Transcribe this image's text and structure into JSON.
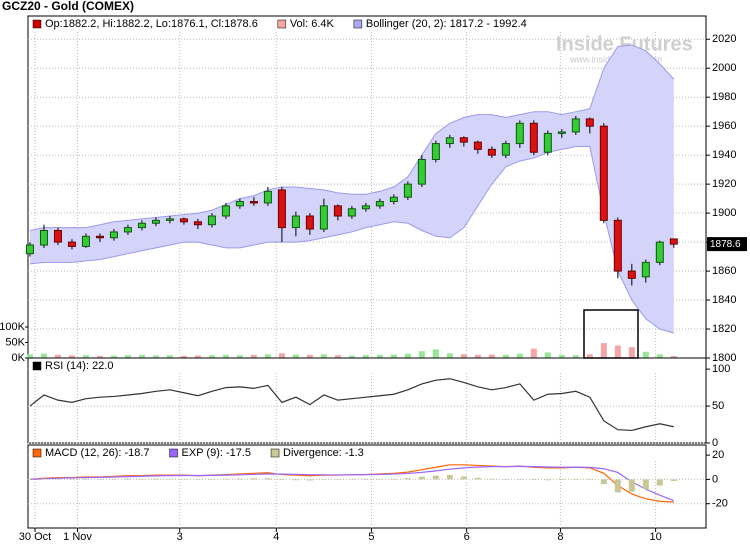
{
  "chart_data": [
    {
      "type": "candlestick",
      "title": "GCZ20 - Gold (COMEX)",
      "legend": [
        {
          "text": "Op:1882.2, Hi:1882.2, Lo:1876.1, Cl:1878.6",
          "color": "#cc0000"
        },
        {
          "text": "Vol: 6.4K",
          "color": "#f4a6a6"
        },
        {
          "text": "Bollinger (20, 2): 1817.2 - 1992.4",
          "color": "#aaaaee"
        }
      ],
      "watermark": [
        "Inside Futures",
        "www.insidefutures.com"
      ],
      "x": [
        0,
        1,
        2,
        3,
        4,
        5,
        6,
        7,
        8,
        9,
        10,
        11,
        12,
        13,
        14,
        15,
        16,
        17,
        18,
        19,
        20,
        21,
        22,
        23,
        24,
        25,
        26,
        27,
        28,
        29,
        30,
        31,
        32,
        33,
        34,
        35,
        36,
        37,
        38,
        39,
        40,
        41,
        42,
        43,
        44,
        45,
        46
      ],
      "open": [
        1872,
        1878,
        1888,
        1880,
        1877,
        1884,
        1883,
        1887,
        1890,
        1893,
        1895,
        1896,
        1894,
        1892,
        1898,
        1905,
        1908,
        1907,
        1916,
        1890,
        1898,
        1889,
        1905,
        1898,
        1903,
        1905,
        1908,
        1911,
        1920,
        1937,
        1948,
        1952,
        1949,
        1944,
        1940,
        1948,
        1962,
        1942,
        1955,
        1956,
        1965,
        1960,
        1895,
        1860,
        1856,
        1866,
        1882.2
      ],
      "high": [
        1880,
        1892,
        1890,
        1882,
        1886,
        1886,
        1889,
        1892,
        1895,
        1897,
        1898,
        1897,
        1896,
        1900,
        1907,
        1910,
        1911,
        1918,
        1918,
        1901,
        1900,
        1910,
        1906,
        1905,
        1907,
        1910,
        1913,
        1922,
        1940,
        1950,
        1954,
        1953,
        1950,
        1946,
        1950,
        1964,
        1964,
        1957,
        1958,
        1967,
        1966,
        1962,
        1897,
        1865,
        1868,
        1881,
        1882.2
      ],
      "low": [
        1870,
        1876,
        1878,
        1875,
        1876,
        1880,
        1881,
        1885,
        1888,
        1891,
        1893,
        1892,
        1889,
        1890,
        1896,
        1903,
        1905,
        1905,
        1880,
        1884,
        1885,
        1887,
        1895,
        1896,
        1901,
        1903,
        1906,
        1909,
        1918,
        1935,
        1945,
        1946,
        1941,
        1938,
        1938,
        1945,
        1940,
        1940,
        1952,
        1954,
        1955,
        1893,
        1855,
        1850,
        1852,
        1864,
        1876.1
      ],
      "close": [
        1878,
        1888,
        1880,
        1877,
        1884,
        1883,
        1887,
        1890,
        1893,
        1895,
        1896,
        1894,
        1892,
        1898,
        1905,
        1908,
        1907,
        1915,
        1890,
        1898,
        1889,
        1905,
        1898,
        1903,
        1905,
        1908,
        1911,
        1920,
        1937,
        1948,
        1952,
        1949,
        1944,
        1940,
        1948,
        1962,
        1942,
        1955,
        1956,
        1965,
        1960,
        1895,
        1860,
        1855,
        1866,
        1880,
        1878.6
      ],
      "up_color": "#33cc33",
      "down_color": "#dd1111",
      "up_volume_color": "#99e699",
      "down_volume_color": "#f4a6a6",
      "volume": [
        12,
        14,
        10,
        8,
        9,
        7,
        8,
        9,
        10,
        8,
        9,
        7,
        8,
        9,
        10,
        9,
        10,
        12,
        15,
        11,
        10,
        12,
        9,
        8,
        9,
        10,
        11,
        14,
        22,
        28,
        15,
        12,
        10,
        11,
        10,
        14,
        30,
        18,
        10,
        9,
        12,
        48,
        40,
        35,
        20,
        12,
        6.4
      ],
      "volume_yticks": [
        {
          "value": 0,
          "label": "0K"
        },
        {
          "value": 50,
          "label": "50K"
        },
        {
          "value": 100,
          "label": "100K"
        }
      ],
      "volume_ylim": [
        0,
        100
      ],
      "bollinger_upper": [
        1888,
        1890,
        1890,
        1890,
        1890,
        1892,
        1894,
        1895,
        1896,
        1897,
        1898,
        1899,
        1900,
        1902,
        1906,
        1910,
        1912,
        1916,
        1918,
        1918,
        1917,
        1916,
        1914,
        1913,
        1913,
        1915,
        1918,
        1925,
        1940,
        1955,
        1962,
        1966,
        1968,
        1968,
        1966,
        1968,
        1970,
        1970,
        1968,
        1970,
        1972,
        2000,
        2015,
        2016,
        2012,
        2003,
        1992.4
      ],
      "bollinger_lower": [
        1865,
        1866,
        1866,
        1866,
        1867,
        1868,
        1870,
        1872,
        1874,
        1876,
        1878,
        1880,
        1880,
        1878,
        1876,
        1876,
        1878,
        1880,
        1880,
        1880,
        1881,
        1883,
        1885,
        1887,
        1890,
        1892,
        1894,
        1893,
        1888,
        1884,
        1883,
        1890,
        1905,
        1920,
        1932,
        1936,
        1938,
        1942,
        1944,
        1946,
        1946,
        1900,
        1860,
        1840,
        1827,
        1820,
        1817.2
      ],
      "band_color": "#d4d4fb",
      "last_price": 1878.6,
      "ylim": [
        1800,
        2025
      ],
      "yticks": [
        1800,
        1820,
        1840,
        1860,
        1880,
        1900,
        1920,
        1940,
        1960,
        1980,
        2000,
        2020
      ],
      "grid": true
    },
    {
      "type": "line",
      "legend": [
        {
          "text": "RSI (14): 22.0",
          "color": "#000000"
        }
      ],
      "series": [
        {
          "name": "RSI (14): 22.0",
          "color": "#333333",
          "values": [
            50,
            65,
            58,
            55,
            60,
            62,
            63,
            65,
            67,
            70,
            72,
            68,
            64,
            70,
            75,
            76,
            74,
            78,
            55,
            62,
            52,
            65,
            58,
            60,
            62,
            64,
            66,
            72,
            80,
            85,
            87,
            82,
            76,
            72,
            75,
            80,
            58,
            66,
            67,
            70,
            62,
            30,
            18,
            17,
            22,
            26,
            22
          ]
        }
      ],
      "ylim": [
        0,
        111
      ],
      "yticks": [
        0,
        50,
        100
      ],
      "grid": true
    },
    {
      "type": "line",
      "legend": [
        {
          "text": "MACD (12, 26): -18.7",
          "color": "#ff6600"
        },
        {
          "text": "EXP (9): -17.5",
          "color": "#9966ff"
        },
        {
          "text": "Divergence: -1.3",
          "color": "#c8c896"
        }
      ],
      "series": [
        {
          "name": "MACD (12, 26): -18.7",
          "kind": "line",
          "color": "#ff6600",
          "values": [
            0,
            1,
            1.5,
            1.5,
            2,
            2,
            2.5,
            3,
            3,
            3.5,
            3.5,
            3.5,
            3,
            3.5,
            4,
            4.5,
            5,
            5.5,
            4,
            3.5,
            3,
            3.5,
            3.5,
            4,
            4,
            4.5,
            5,
            6,
            8,
            10,
            12,
            12,
            11.5,
            11,
            10.5,
            11,
            10,
            9.5,
            9.5,
            10,
            9.5,
            5,
            -5,
            -12,
            -16,
            -18,
            -18.7
          ]
        },
        {
          "name": "EXP (9): -17.5",
          "kind": "line",
          "color": "#9966ff",
          "values": [
            0,
            0.5,
            1,
            1.2,
            1.5,
            1.7,
            2,
            2.3,
            2.6,
            2.9,
            3.1,
            3.2,
            3.2,
            3.3,
            3.5,
            3.8,
            4.1,
            4.5,
            4.4,
            4.2,
            3.9,
            3.8,
            3.7,
            3.8,
            3.9,
            4.1,
            4.4,
            4.9,
            5.8,
            7,
            8.4,
            9.5,
            10.2,
            10.5,
            10.5,
            10.7,
            10.5,
            10.2,
            10,
            10,
            9.9,
            8.8,
            5.7,
            -2,
            -8,
            -13,
            -17.5
          ]
        },
        {
          "name": "Divergence: -1.3",
          "kind": "bar",
          "color": "#c8c896",
          "values": [
            0,
            0.5,
            0.5,
            0.3,
            0.5,
            0.3,
            0.5,
            0.7,
            0.4,
            0.6,
            0.4,
            0.3,
            -0.2,
            0.2,
            0.5,
            0.7,
            0.9,
            1,
            -0.4,
            -0.7,
            -0.9,
            -0.3,
            -0.2,
            0.2,
            0.1,
            0.4,
            0.6,
            1.1,
            2.2,
            3,
            3.6,
            2.5,
            1.3,
            0.5,
            0,
            0.3,
            -0.5,
            -0.7,
            -0.5,
            0,
            -0.4,
            -3.8,
            -10.7,
            -10,
            -8,
            -5,
            -1.3
          ]
        }
      ],
      "ylim": [
        -40,
        27.5
      ],
      "yticks": [
        -20,
        0,
        20
      ],
      "grid": true,
      "xlim": [
        -0.14,
        48.3
      ],
      "xticks": [
        {
          "value": 0.36,
          "label": "30 Oct"
        },
        {
          "value": 3.4,
          "label": "1 Nov"
        },
        {
          "value": 10.7,
          "label": "3"
        },
        {
          "value": 17.6,
          "label": "4"
        },
        {
          "value": 24.4,
          "label": "5"
        },
        {
          "value": 31.2,
          "label": "6"
        },
        {
          "value": 37.9,
          "label": "8"
        },
        {
          "value": 44.7,
          "label": "10"
        }
      ]
    }
  ]
}
